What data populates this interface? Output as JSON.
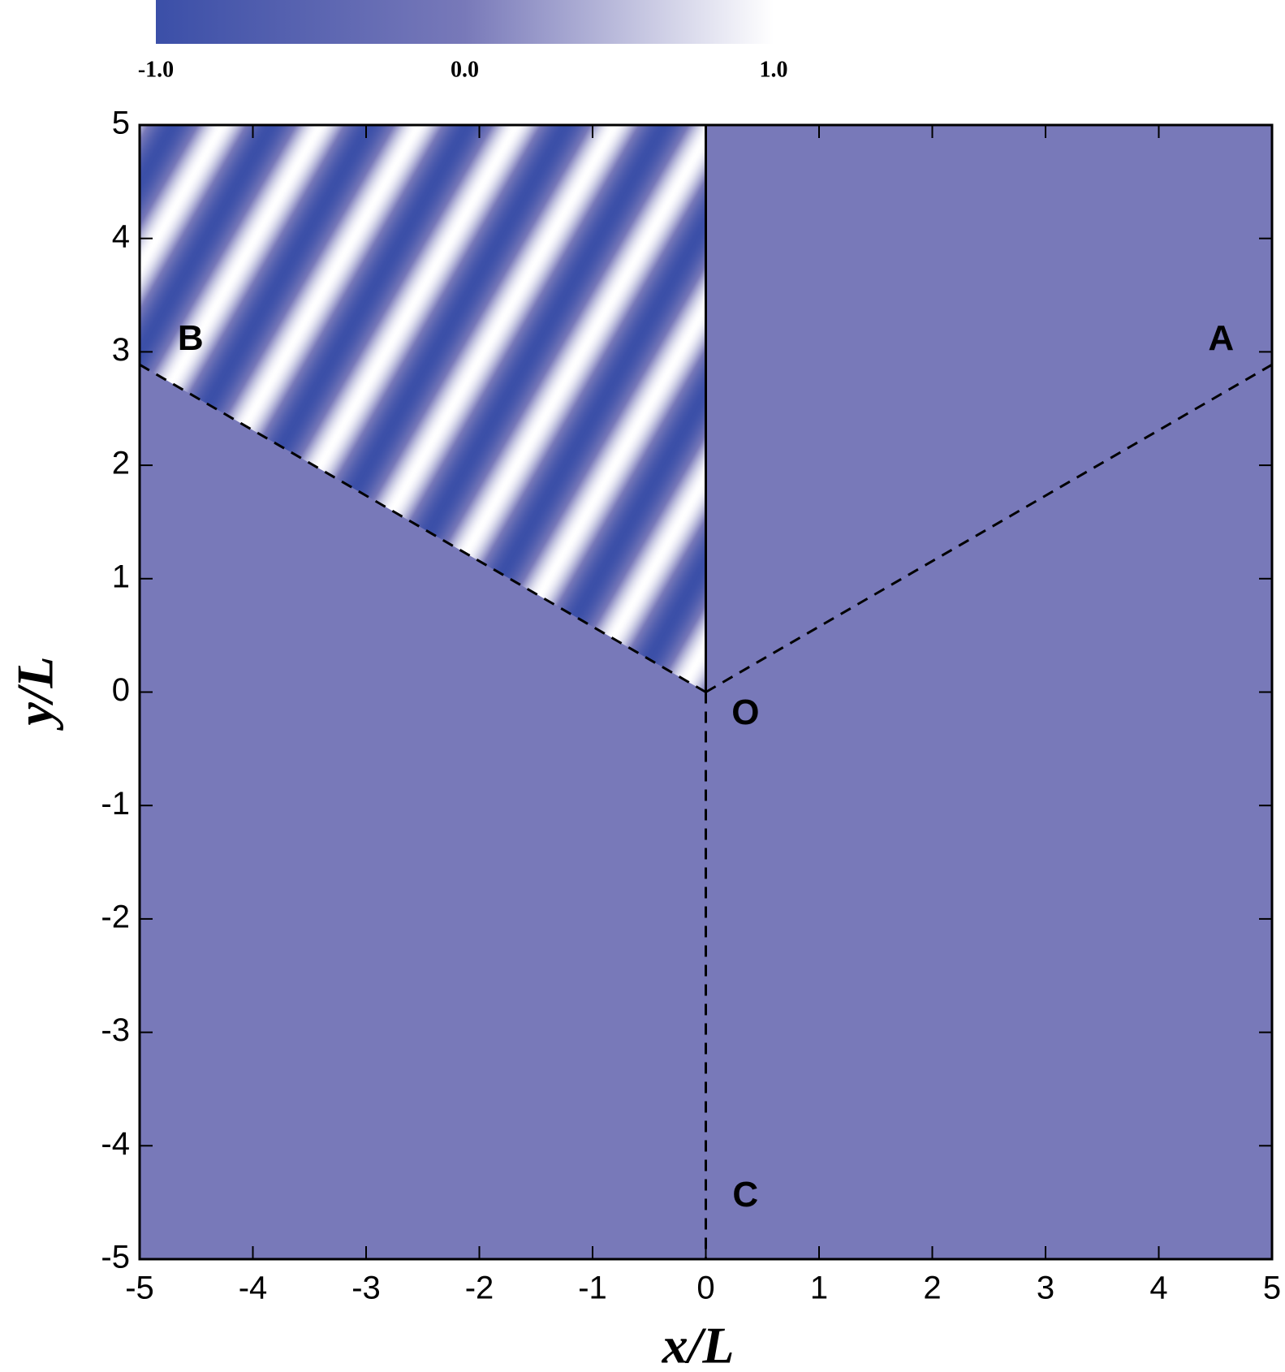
{
  "chart_data": {
    "type": "contour",
    "xlabel": "x/L",
    "ylabel": "y/L",
    "xlim": [
      -5,
      5
    ],
    "ylim": [
      -5,
      5
    ],
    "xticks": [
      -5,
      -4,
      -3,
      -2,
      -1,
      0,
      1,
      2,
      3,
      4,
      5
    ],
    "yticks": [
      -5,
      -4,
      -3,
      -2,
      -1,
      0,
      1,
      2,
      3,
      4,
      5
    ],
    "colormap": [
      "#3b4fa8",
      "#7879b9",
      "#ffffff"
    ],
    "clim": [
      -1,
      1
    ],
    "colorbar_ticks": [
      {
        "value": -1,
        "label": "-1.0"
      },
      {
        "value": 0,
        "label": "0.0"
      },
      {
        "value": 1,
        "label": "1.0"
      }
    ],
    "annotations": [
      "A",
      "B",
      "O",
      "C"
    ]
  }
}
